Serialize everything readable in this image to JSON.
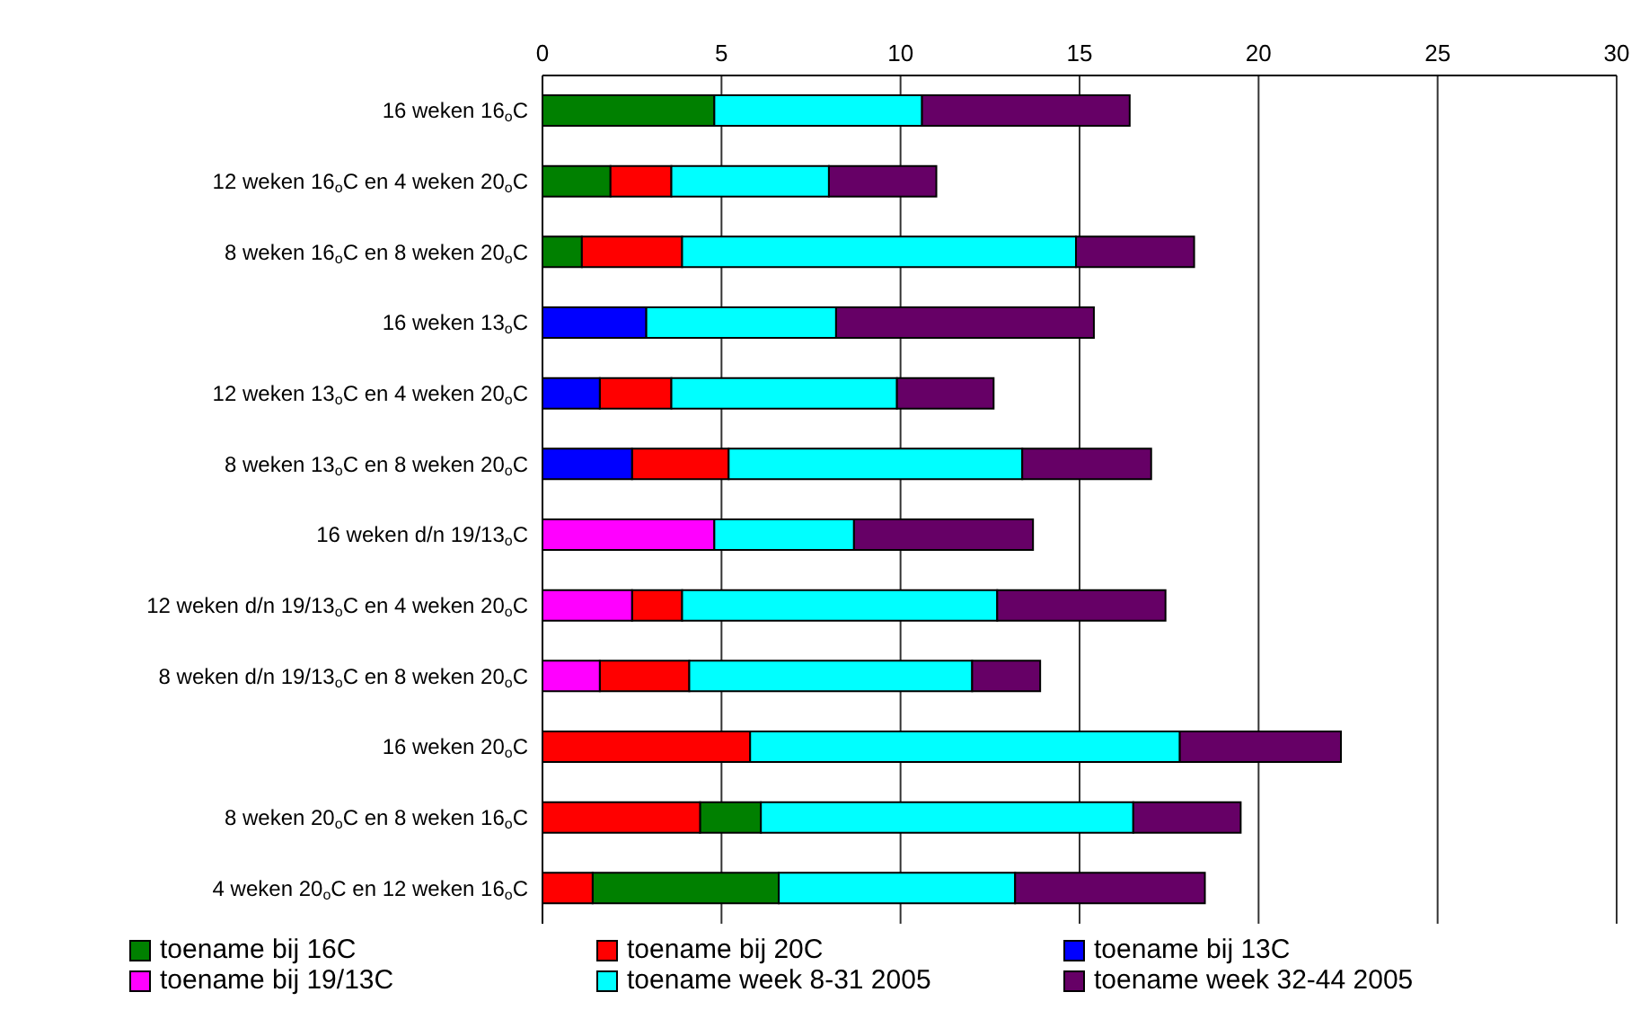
{
  "chart_data": {
    "type": "bar",
    "orientation": "horizontal",
    "categories": [
      "16 weken 16$_{o}$C",
      "12 weken 16$_{o}$C en 4 weken 20$_{o}$C",
      "8 weken 16$_{o}$C en 8 weken 20$_{o}$C",
      "16 weken 13$_{o}$C",
      "12 weken 13$_{o}$C en 4 weken 20$_{o}$C",
      "8 weken 13$_{o}$C en 8 weken 20$_{o}$C",
      "16 weken d/n 19/13$_{o}$C",
      "12 weken d/n 19/13$_{o}$C en 4 weken 20$_{o}$C",
      "8 weken d/n 19/13$_{o}$C en 8 weken 20$_{o}$C",
      "16 weken 20$_{o}$C",
      "8 weken 20$_{o}$C en 8 weken 16$_{o}$C",
      "4 weken 20$_{o}$C en 12 weken 16$_{o}$C"
    ],
    "series": [
      {
        "name": "toename bij 16C",
        "color": "#008000",
        "values": [
          4.8,
          1.9,
          1.1,
          null,
          null,
          null,
          null,
          null,
          null,
          null,
          1.7,
          5.2
        ],
        "base": [
          0,
          0,
          0,
          null,
          null,
          null,
          null,
          null,
          null,
          null,
          4.4,
          1.4
        ]
      },
      {
        "name": "toename bij 20C",
        "color": "#ff0000",
        "values": [
          null,
          1.7,
          2.8,
          null,
          2.0,
          2.7,
          null,
          1.4,
          2.5,
          5.8,
          4.4,
          1.4
        ],
        "base": [
          null,
          1.9,
          1.1,
          null,
          1.6,
          2.5,
          null,
          2.5,
          1.6,
          0,
          0,
          0
        ]
      },
      {
        "name": "toename bij 13C",
        "color": "#0000ff",
        "values": [
          null,
          null,
          null,
          2.9,
          1.6,
          2.5,
          null,
          null,
          null,
          null,
          null,
          null
        ],
        "base": [
          null,
          null,
          null,
          0,
          0,
          0,
          null,
          null,
          null,
          null,
          null,
          null
        ]
      },
      {
        "name": "toename bij 19/13C",
        "color": "#ff00ff",
        "values": [
          null,
          null,
          null,
          null,
          null,
          null,
          4.8,
          2.5,
          1.6,
          null,
          null,
          null
        ],
        "base": [
          null,
          null,
          null,
          null,
          null,
          null,
          0,
          0,
          0,
          null,
          null,
          null
        ]
      },
      {
        "name": "toename week 8-31 2005",
        "color": "#00ffff",
        "values": [
          5.8,
          4.4,
          11.0,
          5.3,
          6.3,
          8.2,
          3.9,
          8.8,
          7.9,
          12.0,
          10.4,
          6.6
        ],
        "base": [
          4.8,
          3.6,
          3.9,
          2.9,
          3.6,
          5.2,
          4.8,
          3.9,
          4.1,
          5.8,
          6.1,
          6.6
        ]
      },
      {
        "name": "toename week 32-44 2005",
        "color": "#660066",
        "values": [
          5.8,
          3.0,
          3.3,
          7.2,
          2.7,
          3.6,
          5.0,
          4.7,
          1.9,
          4.5,
          3.0,
          5.3
        ],
        "base": [
          10.6,
          8.0,
          14.9,
          8.2,
          9.9,
          13.4,
          8.7,
          12.7,
          12.0,
          17.8,
          16.5,
          13.2
        ]
      }
    ],
    "xlim": [
      0,
      30
    ],
    "xticks": [
      0,
      5,
      10,
      15,
      20,
      25,
      30
    ],
    "grid": "x",
    "legend": "bottom"
  }
}
